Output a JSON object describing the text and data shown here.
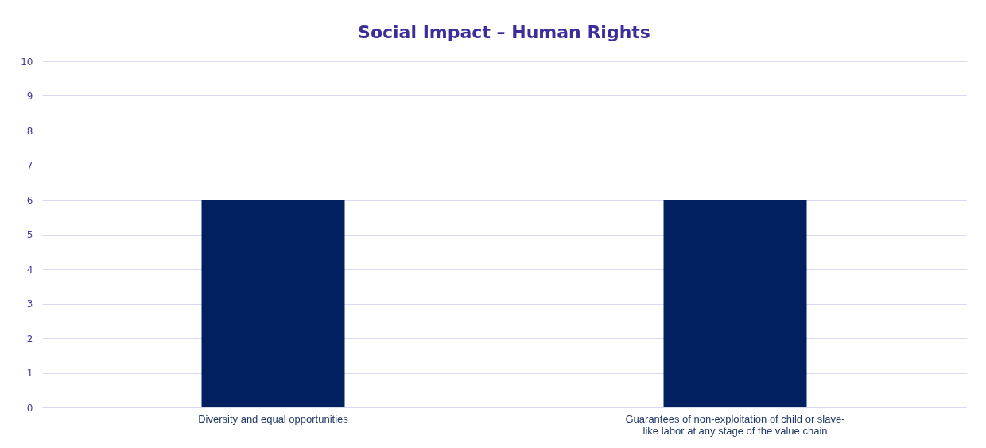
{
  "chart_data": {
    "type": "bar",
    "title": "Social Impact – Human Rights",
    "categories": [
      "Diversity and equal opportunities",
      "Guarantees of non-exploitation of child or slave-like labor at any stage of the value chain"
    ],
    "values": [
      6,
      6
    ],
    "color": "#002060",
    "ylim": [
      0,
      10
    ],
    "yticks": [
      0,
      1,
      2,
      3,
      4,
      5,
      6,
      7,
      8,
      9,
      10
    ],
    "grid": "y"
  }
}
